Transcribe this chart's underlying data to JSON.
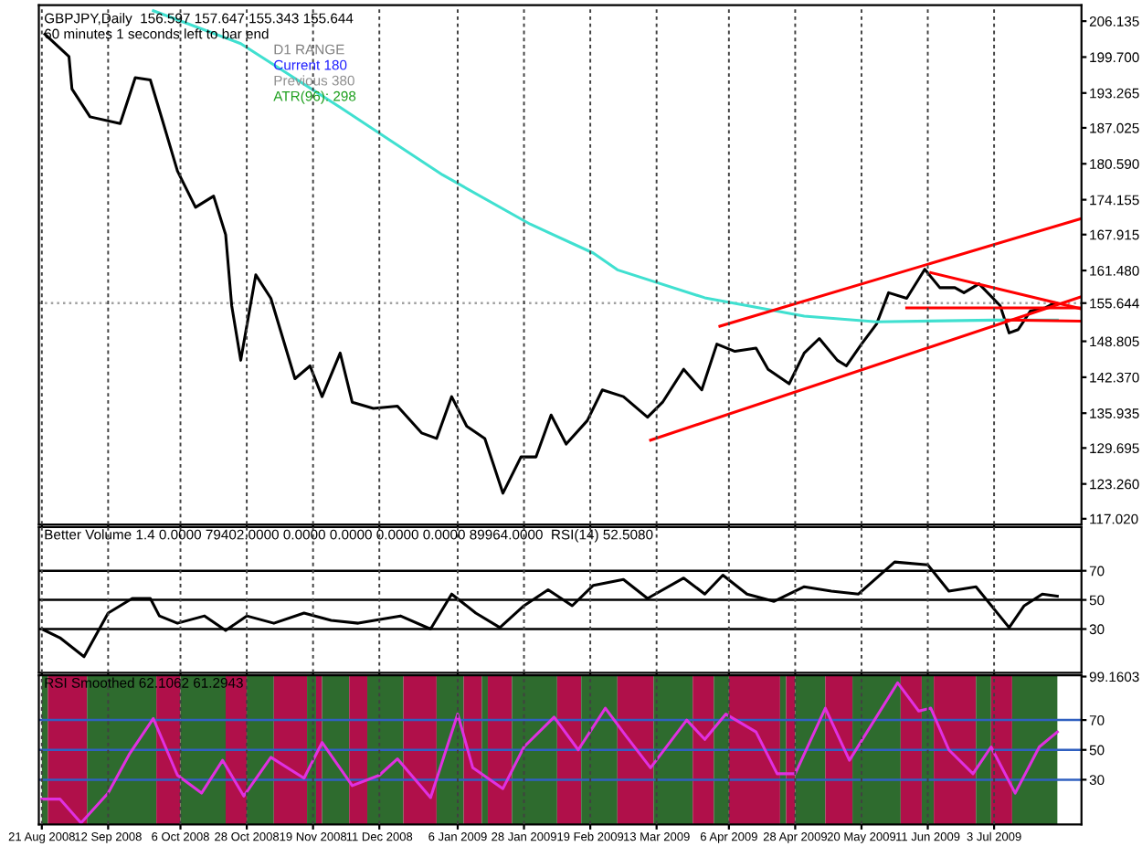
{
  "chart_data": [
    {
      "type": "line",
      "title": "GBPJPY,Daily  156.597 157.647 155.343 155.644",
      "annotations": [
        "60 minutes 1 seconds left to bar end",
        "D1 RANGE",
        "Current 180",
        "Previous 380",
        "ATR(96): 298"
      ],
      "xlim": [
        "2008-08-20",
        "2009-08-01"
      ],
      "ylim": [
        116,
        209
      ],
      "tick_labels": "y",
      "grid": "x",
      "legend": false,
      "xticks": [
        {
          "value": "2008-08-21",
          "label": null
        },
        {
          "value": "2008-09-12",
          "label": null
        },
        {
          "value": "2008-10-06",
          "label": null
        },
        {
          "value": "2008-10-28",
          "label": null
        },
        {
          "value": "2008-11-19",
          "label": null
        },
        {
          "value": "2008-12-11",
          "label": null
        },
        {
          "value": "2009-01-06",
          "label": null
        },
        {
          "value": "2009-01-28",
          "label": null
        },
        {
          "value": "2009-02-19",
          "label": null
        },
        {
          "value": "2009-03-13",
          "label": null
        },
        {
          "value": "2009-04-06",
          "label": null
        },
        {
          "value": "2009-04-28",
          "label": null
        },
        {
          "value": "2009-05-20",
          "label": null
        },
        {
          "value": "2009-06-11",
          "label": null
        },
        {
          "value": "2009-07-03",
          "label": null
        }
      ],
      "yticks": [
        {
          "value": 206.135,
          "label": "206.135"
        },
        {
          "value": 199.7,
          "label": "199.700"
        },
        {
          "value": 193.265,
          "label": "193.265"
        },
        {
          "value": 187.025,
          "label": "187.025"
        },
        {
          "value": 180.59,
          "label": "180.590"
        },
        {
          "value": 174.155,
          "label": "174.155"
        },
        {
          "value": 167.915,
          "label": "167.915"
        },
        {
          "value": 161.48,
          "label": "161.480"
        },
        {
          "value": 155.644,
          "label": "155.644"
        },
        {
          "value": 148.805,
          "label": "148.805"
        },
        {
          "value": 142.37,
          "label": "142.370"
        },
        {
          "value": 135.935,
          "label": "135.935"
        },
        {
          "value": 129.695,
          "label": "129.695"
        },
        {
          "value": 123.26,
          "label": "123.260"
        },
        {
          "value": 117.02,
          "label": "117.020"
        }
      ],
      "ref_lines": [
        {
          "axis": "y",
          "value": 155.644,
          "color": "#a0a0a0",
          "line_style": "dotted"
        }
      ],
      "series": [
        {
          "color": "#000000",
          "x": [
            "2008-08-22",
            "2008-08-30",
            "2008-08-31",
            "2008-09-06",
            "2008-09-16",
            "2008-09-21",
            "2008-09-26",
            "2008-09-30",
            "2008-10-05",
            "2008-10-11",
            "2008-10-17",
            "2008-10-21",
            "2008-10-23",
            "2008-10-26",
            "2008-10-31",
            "2008-11-05",
            "2008-11-13",
            "2008-11-18",
            "2008-11-22",
            "2008-11-28",
            "2008-12-02",
            "2008-12-09",
            "2008-12-17",
            "2008-12-25",
            "2008-12-30",
            "2009-01-04",
            "2009-01-09",
            "2009-01-15",
            "2009-01-19",
            "2009-01-21",
            "2009-01-27",
            "2009-02-01",
            "2009-02-06",
            "2009-02-11",
            "2009-02-18",
            "2009-02-23",
            "2009-03-02",
            "2009-03-10",
            "2009-03-15",
            "2009-03-22",
            "2009-03-28",
            "2009-04-02",
            "2009-04-08",
            "2009-04-15",
            "2009-04-19",
            "2009-04-26",
            "2009-05-01",
            "2009-05-06",
            "2009-05-12",
            "2009-05-15",
            "2009-05-20",
            "2009-05-25",
            "2009-05-29",
            "2009-06-04",
            "2009-06-10",
            "2009-06-15",
            "2009-06-20",
            "2009-06-23",
            "2009-06-28",
            "2009-07-05",
            "2009-07-08",
            "2009-07-11",
            "2009-07-15",
            "2009-07-20",
            "2009-07-23"
          ],
          "values": [
            203.8,
            199.8,
            194,
            189,
            187.8,
            196,
            195.6,
            188.4,
            179.3,
            172.8,
            174.8,
            167.9,
            155.2,
            145.4,
            160.7,
            156.5,
            142.1,
            144.4,
            138.9,
            146.7,
            137.9,
            136.8,
            137.2,
            132.4,
            131.4,
            138.9,
            133.6,
            131.4,
            124.9,
            121.6,
            128.1,
            128.1,
            135.6,
            130.4,
            134.6,
            140.1,
            138.9,
            135.2,
            137.9,
            143.8,
            140.1,
            148.3,
            147,
            147.6,
            143.8,
            141.2,
            146.7,
            149.3,
            145.4,
            144.4,
            148.3,
            151.9,
            157.5,
            156.5,
            161.7,
            158.4,
            158.4,
            157.5,
            159.1,
            155.2,
            150.3,
            150.9,
            154.2,
            154.8,
            155.644
          ]
        },
        {
          "color": "#40e0d0",
          "x": [
            "2008-09-27",
            "2008-10-26",
            "2008-11-28",
            "2009-01-01",
            "2009-01-30",
            "2009-02-20",
            "2009-02-28",
            "2009-03-29",
            "2009-05-01",
            "2009-05-25",
            "2009-07-03",
            "2009-07-24"
          ],
          "values": [
            208,
            202.1,
            190.7,
            178.6,
            169.8,
            164.6,
            161.6,
            156.6,
            153.3,
            152.3,
            152.6,
            152.6
          ]
        },
        {
          "color": "#ff0000",
          "x": [
            "2009-04-03",
            "2009-08-01"
          ],
          "values": [
            151.5,
            170.8
          ]
        },
        {
          "color": "#ff0000",
          "x": [
            "2009-03-11",
            "2009-08-01"
          ],
          "values": [
            131.1,
            156.8
          ]
        },
        {
          "color": "#ff0000",
          "x": [
            "2009-06-12",
            "2009-08-01"
          ],
          "values": [
            161.1,
            154.6
          ]
        },
        {
          "color": "#ff0000",
          "x": [
            "2009-06-04",
            "2009-08-01"
          ],
          "values": [
            154.8,
            154.8
          ]
        },
        {
          "color": "#ff0000",
          "x": [
            "2009-07-07",
            "2009-08-01"
          ],
          "values": [
            152.6,
            152.4
          ]
        }
      ]
    },
    {
      "type": "line",
      "title": "Better Volume 1.4 0.0000 79402.0000 0.0000 0.0000 0.0000 0.0000 89964.0000  RSI(14) 52.5080",
      "xlim": [
        "2008-08-20",
        "2009-08-01"
      ],
      "ylim": [
        0,
        100
      ],
      "yticks": [
        30,
        50,
        70
      ],
      "tick_labels": "y",
      "grid": "x",
      "legend": false,
      "xticks": [
        {
          "value": "2008-08-21",
          "label": null
        },
        {
          "value": "2008-09-12",
          "label": null
        },
        {
          "value": "2008-10-06",
          "label": null
        },
        {
          "value": "2008-10-28",
          "label": null
        },
        {
          "value": "2008-11-19",
          "label": null
        },
        {
          "value": "2008-12-11",
          "label": null
        },
        {
          "value": "2009-01-06",
          "label": null
        },
        {
          "value": "2009-01-28",
          "label": null
        },
        {
          "value": "2009-02-19",
          "label": null
        },
        {
          "value": "2009-03-13",
          "label": null
        },
        {
          "value": "2009-04-06",
          "label": null
        },
        {
          "value": "2009-04-28",
          "label": null
        },
        {
          "value": "2009-05-20",
          "label": null
        },
        {
          "value": "2009-06-11",
          "label": null
        },
        {
          "value": "2009-07-03",
          "label": null
        }
      ],
      "ref_lines": [
        {
          "axis": "y",
          "value": 70,
          "color": "#000000"
        },
        {
          "axis": "y",
          "value": 50,
          "color": "#000000"
        },
        {
          "axis": "y",
          "value": 30,
          "color": "#000000"
        }
      ],
      "series": [
        {
          "color": "#000000",
          "x": [
            "2008-08-21",
            "2008-08-27",
            "2008-09-04",
            "2008-09-12",
            "2008-09-20",
            "2008-09-26",
            "2008-09-29",
            "2008-10-05",
            "2008-10-14",
            "2008-10-21",
            "2008-10-28",
            "2008-11-06",
            "2008-11-16",
            "2008-11-25",
            "2008-12-04",
            "2008-12-18",
            "2008-12-28",
            "2009-01-04",
            "2009-01-12",
            "2009-01-20",
            "2009-01-28",
            "2009-02-05",
            "2009-02-13",
            "2009-02-20",
            "2009-03-02",
            "2009-03-10",
            "2009-03-22",
            "2009-03-29",
            "2009-04-04",
            "2009-04-12",
            "2009-04-21",
            "2009-05-01",
            "2009-05-10",
            "2009-05-19",
            "2009-05-31",
            "2009-06-11",
            "2009-06-18",
            "2009-06-27",
            "2009-07-08",
            "2009-07-13",
            "2009-07-19",
            "2009-07-24"
          ],
          "values": [
            30,
            24,
            11,
            41,
            51,
            51,
            39,
            34,
            39,
            29,
            39,
            34,
            41,
            36,
            34,
            39,
            30,
            54,
            41,
            31,
            46,
            57,
            46,
            60,
            64,
            51,
            65,
            54,
            67,
            54,
            49,
            59,
            56,
            54,
            76,
            74,
            56,
            59,
            31,
            46,
            54,
            52.508
          ]
        }
      ]
    },
    {
      "type": "line",
      "title": "RSI Smoothed 62.1062 61.2943",
      "xlim": [
        "2008-08-20",
        "2009-08-01"
      ],
      "ylim": [
        0,
        100
      ],
      "yticks": [
        30,
        50,
        70,
        99.1603
      ],
      "grid": "x",
      "legend": false,
      "xticks": [
        {
          "value": "2008-08-21",
          "label": "21 Aug 2008"
        },
        {
          "value": "2008-09-12",
          "label": "12 Sep 2008"
        },
        {
          "value": "2008-10-06",
          "label": "6 Oct 2008"
        },
        {
          "value": "2008-10-28",
          "label": "28 Oct 2008"
        },
        {
          "value": "2008-11-19",
          "label": "19 Nov 2008"
        },
        {
          "value": "2008-12-11",
          "label": "11 Dec 2008"
        },
        {
          "value": "2009-01-06",
          "label": "6 Jan 2009"
        },
        {
          "value": "2009-01-28",
          "label": "28 Jan 2009"
        },
        {
          "value": "2009-02-19",
          "label": "19 Feb 2009"
        },
        {
          "value": "2009-03-13",
          "label": "13 Mar 2009"
        },
        {
          "value": "2009-04-06",
          "label": "6 Apr 2009"
        },
        {
          "value": "2009-04-28",
          "label": "28 Apr 2009"
        },
        {
          "value": "2009-05-20",
          "label": "20 May 2009"
        },
        {
          "value": "2009-06-11",
          "label": "11 Jun 2009"
        },
        {
          "value": "2009-07-03",
          "label": "3 Jul 2009"
        }
      ],
      "ref_lines": [
        {
          "axis": "y",
          "value": 70,
          "color": "#3060c0"
        },
        {
          "axis": "y",
          "value": 50,
          "color": "#3060c0"
        },
        {
          "axis": "y",
          "value": 30,
          "color": "#3060c0"
        }
      ],
      "bands": [
        {
          "axis": "x",
          "from": "2008-08-21",
          "to": "2008-08-23",
          "color": "#2e6b2e"
        },
        {
          "axis": "x",
          "from": "2008-08-23",
          "to": "2008-09-05",
          "color": "#b0104a"
        },
        {
          "axis": "x",
          "from": "2008-09-05",
          "to": "2008-09-28",
          "color": "#2e6b2e"
        },
        {
          "axis": "x",
          "from": "2008-09-28",
          "to": "2008-10-06",
          "color": "#b0104a"
        },
        {
          "axis": "x",
          "from": "2008-10-06",
          "to": "2008-10-21",
          "color": "#2e6b2e"
        },
        {
          "axis": "x",
          "from": "2008-10-21",
          "to": "2008-10-28",
          "color": "#b0104a"
        },
        {
          "axis": "x",
          "from": "2008-10-28",
          "to": "2008-11-06",
          "color": "#2e6b2e"
        },
        {
          "axis": "x",
          "from": "2008-11-06",
          "to": "2008-11-17",
          "color": "#b0104a"
        },
        {
          "axis": "x",
          "from": "2008-11-17",
          "to": "2008-11-20",
          "color": "#2e6b2e"
        },
        {
          "axis": "x",
          "from": "2008-11-20",
          "to": "2008-11-22",
          "color": "#b0104a"
        },
        {
          "axis": "x",
          "from": "2008-11-22",
          "to": "2008-12-01",
          "color": "#2e6b2e"
        },
        {
          "axis": "x",
          "from": "2008-12-01",
          "to": "2008-12-07",
          "color": "#b0104a"
        },
        {
          "axis": "x",
          "from": "2008-12-07",
          "to": "2008-12-19",
          "color": "#2e6b2e"
        },
        {
          "axis": "x",
          "from": "2008-12-19",
          "to": "2008-12-30",
          "color": "#b0104a"
        },
        {
          "axis": "x",
          "from": "2008-12-30",
          "to": "2009-01-08",
          "color": "#2e6b2e"
        },
        {
          "axis": "x",
          "from": "2009-01-08",
          "to": "2009-01-14",
          "color": "#b0104a"
        },
        {
          "axis": "x",
          "from": "2009-01-14",
          "to": "2009-01-16",
          "color": "#2e6b2e"
        },
        {
          "axis": "x",
          "from": "2009-01-16",
          "to": "2009-01-24",
          "color": "#b0104a"
        },
        {
          "axis": "x",
          "from": "2009-01-24",
          "to": "2009-02-08",
          "color": "#2e6b2e"
        },
        {
          "axis": "x",
          "from": "2009-02-08",
          "to": "2009-02-16",
          "color": "#b0104a"
        },
        {
          "axis": "x",
          "from": "2009-02-16",
          "to": "2009-02-28",
          "color": "#2e6b2e"
        },
        {
          "axis": "x",
          "from": "2009-02-28",
          "to": "2009-03-12",
          "color": "#b0104a"
        },
        {
          "axis": "x",
          "from": "2009-03-12",
          "to": "2009-03-25",
          "color": "#2e6b2e"
        },
        {
          "axis": "x",
          "from": "2009-03-25",
          "to": "2009-04-01",
          "color": "#b0104a"
        },
        {
          "axis": "x",
          "from": "2009-04-01",
          "to": "2009-04-06",
          "color": "#2e6b2e"
        },
        {
          "axis": "x",
          "from": "2009-04-06",
          "to": "2009-04-23",
          "color": "#b0104a"
        },
        {
          "axis": "x",
          "from": "2009-04-23",
          "to": "2009-04-25",
          "color": "#2e6b2e"
        },
        {
          "axis": "x",
          "from": "2009-04-25",
          "to": "2009-04-28",
          "color": "#b0104a"
        },
        {
          "axis": "x",
          "from": "2009-04-28",
          "to": "2009-05-08",
          "color": "#2e6b2e"
        },
        {
          "axis": "x",
          "from": "2009-05-08",
          "to": "2009-05-17",
          "color": "#b0104a"
        },
        {
          "axis": "x",
          "from": "2009-05-17",
          "to": "2009-06-02",
          "color": "#2e6b2e"
        },
        {
          "axis": "x",
          "from": "2009-06-02",
          "to": "2009-06-09",
          "color": "#b0104a"
        },
        {
          "axis": "x",
          "from": "2009-06-09",
          "to": "2009-06-13",
          "color": "#2e6b2e"
        },
        {
          "axis": "x",
          "from": "2009-06-13",
          "to": "2009-06-27",
          "color": "#b0104a"
        },
        {
          "axis": "x",
          "from": "2009-06-27",
          "to": "2009-07-02",
          "color": "#2e6b2e"
        },
        {
          "axis": "x",
          "from": "2009-07-02",
          "to": "2009-07-09",
          "color": "#b0104a"
        },
        {
          "axis": "x",
          "from": "2009-07-09",
          "to": "2009-07-24",
          "color": "#2e6b2e"
        }
      ],
      "series": [
        {
          "color": "#e030e0",
          "x": [
            "2008-08-21",
            "2008-08-27",
            "2008-09-03",
            "2008-09-12",
            "2008-09-19",
            "2008-09-27",
            "2008-10-05",
            "2008-10-13",
            "2008-10-20",
            "2008-10-27",
            "2008-11-05",
            "2008-11-16",
            "2008-11-22",
            "2008-12-02",
            "2008-12-11",
            "2008-12-17",
            "2008-12-28",
            "2009-01-06",
            "2009-01-11",
            "2009-01-21",
            "2009-01-28",
            "2009-02-07",
            "2009-02-15",
            "2009-02-24",
            "2009-03-03",
            "2009-03-11",
            "2009-03-23",
            "2009-03-29",
            "2009-04-05",
            "2009-04-15",
            "2009-04-22",
            "2009-04-28",
            "2009-05-08",
            "2009-05-16",
            "2009-06-01",
            "2009-06-08",
            "2009-06-12",
            "2009-06-18",
            "2009-06-26",
            "2009-07-02",
            "2009-07-10",
            "2009-07-18",
            "2009-07-24"
          ],
          "values": [
            17,
            17,
            1,
            21,
            47,
            71,
            33,
            21,
            43,
            19,
            45,
            31,
            55,
            26,
            33,
            44,
            18,
            74,
            38,
            24,
            52,
            72,
            50,
            78,
            59,
            38,
            70,
            57,
            74,
            62,
            34,
            34,
            78,
            43,
            95,
            76,
            78,
            50,
            34,
            52,
            21,
            52,
            62
          ]
        }
      ]
    }
  ]
}
